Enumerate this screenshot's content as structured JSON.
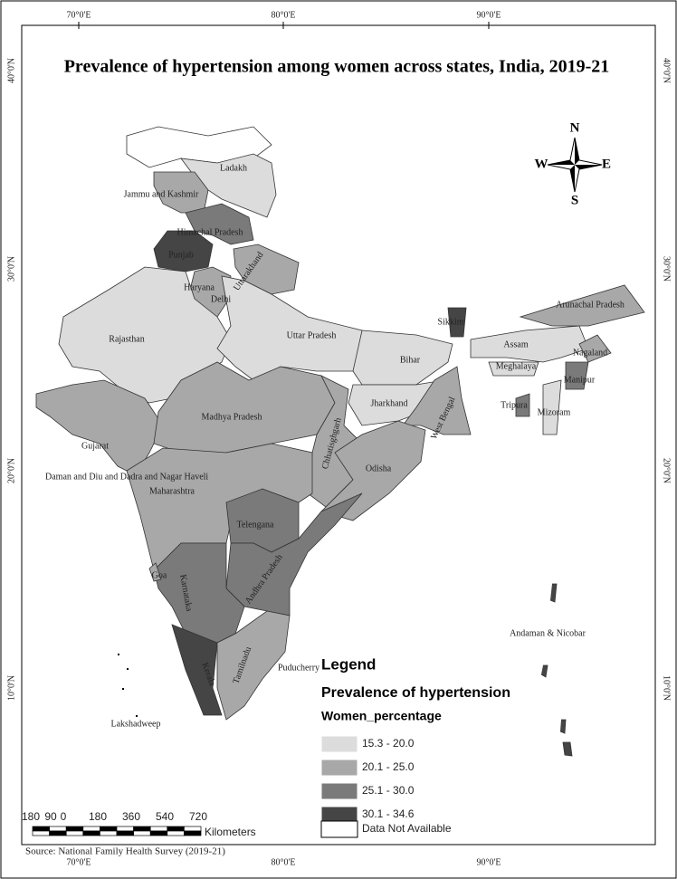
{
  "title": "Prevalence of hypertension among women across states, India, 2019-21",
  "graticule": {
    "top": [
      "70°0'E",
      "80°0'E",
      "90°0'E"
    ],
    "bottom": [
      "70°0'E",
      "80°0'E",
      "90°0'E"
    ],
    "left": [
      "40°0'N",
      "30°0'N",
      "20°0'N",
      "10°0'N"
    ],
    "right": [
      "40°0'N",
      "30°0'N",
      "20°0'N",
      "10°0'N"
    ]
  },
  "compass": {
    "north": "N",
    "south": "S",
    "east": "E",
    "west": "W"
  },
  "states": [
    {
      "name": "Ladakh",
      "color": "#dcdcdc"
    },
    {
      "name": "Jammu and Kashmir",
      "color": "#a8a8a8"
    },
    {
      "name": "Himachal Pradesh",
      "color": "#7a7a7a"
    },
    {
      "name": "Punjab",
      "color": "#454545"
    },
    {
      "name": "Uttarakhand",
      "color": "#a8a8a8"
    },
    {
      "name": "Haryana",
      "color": "#a8a8a8"
    },
    {
      "name": "Delhi",
      "color": "#a8a8a8"
    },
    {
      "name": "Rajasthan",
      "color": "#dcdcdc"
    },
    {
      "name": "Uttar Pradesh",
      "color": "#dcdcdc"
    },
    {
      "name": "Bihar",
      "color": "#dcdcdc"
    },
    {
      "name": "Gujarat",
      "color": "#a8a8a8"
    },
    {
      "name": "Madhya Pradesh",
      "color": "#a8a8a8"
    },
    {
      "name": "Jharkhand",
      "color": "#dcdcdc"
    },
    {
      "name": "West Bengal",
      "color": "#a8a8a8"
    },
    {
      "name": "Chhatisghgarh",
      "color": "#a8a8a8"
    },
    {
      "name": "Odisha",
      "color": "#a8a8a8"
    },
    {
      "name": "Daman and Diu and Dadra and Nagar Haveli",
      "color": "#a8a8a8"
    },
    {
      "name": "Maharashtra",
      "color": "#a8a8a8"
    },
    {
      "name": "Telengana",
      "color": "#7a7a7a"
    },
    {
      "name": "Andhra Pradesh",
      "color": "#7a7a7a"
    },
    {
      "name": "Karnataka",
      "color": "#7a7a7a"
    },
    {
      "name": "Goa",
      "color": "#a8a8a8"
    },
    {
      "name": "Kerala",
      "color": "#454545"
    },
    {
      "name": "Tamilnadu",
      "color": "#a8a8a8"
    },
    {
      "name": "Puducherry",
      "color": "#a8a8a8"
    },
    {
      "name": "Lakshadweep",
      "color": "#ffffff"
    },
    {
      "name": "Sikkim",
      "color": "#454545"
    },
    {
      "name": "Assam",
      "color": "#dcdcdc"
    },
    {
      "name": "Arunachal Pradesh",
      "color": "#a8a8a8"
    },
    {
      "name": "Nagaland",
      "color": "#a8a8a8"
    },
    {
      "name": "Meghalaya",
      "color": "#dcdcdc"
    },
    {
      "name": "Manipur",
      "color": "#7a7a7a"
    },
    {
      "name": "Tripura",
      "color": "#7a7a7a"
    },
    {
      "name": "Mizoram",
      "color": "#dcdcdc"
    },
    {
      "name": "Andaman & Nicobar",
      "color": "#454545"
    }
  ],
  "legend": {
    "title": "Legend",
    "subtitle": "Prevalence of hypertension",
    "field": "Women_percentage",
    "classes": [
      {
        "label": "15.3 - 20.0",
        "color": "#dcdcdc"
      },
      {
        "label": "20.1 - 25.0",
        "color": "#a8a8a8"
      },
      {
        "label": "25.1 - 30.0",
        "color": "#7a7a7a"
      },
      {
        "label": "30.1 - 34.6",
        "color": "#454545"
      }
    ],
    "not_available": "Data Not Available"
  },
  "scale": {
    "ticks": [
      "180",
      "90",
      "0",
      "180",
      "360",
      "540",
      "720"
    ],
    "unit": "Kilometers"
  },
  "source": "Source: National Family Health Survey (2019-21)"
}
